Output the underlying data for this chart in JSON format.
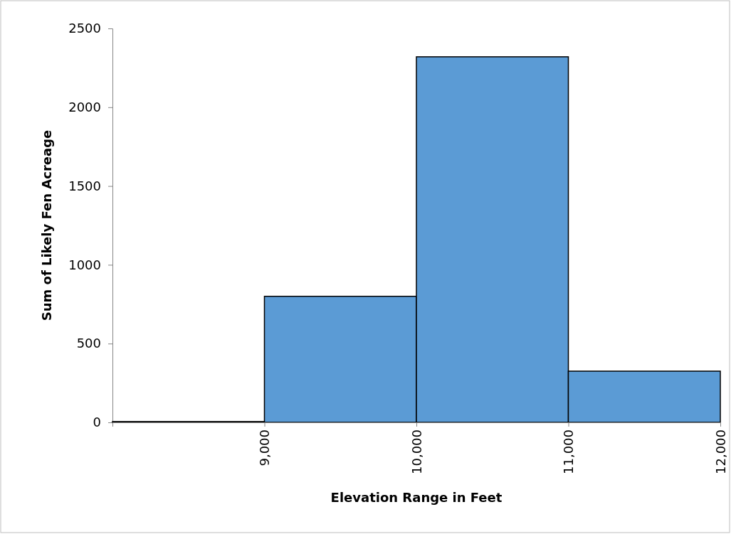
{
  "chart_data": {
    "type": "histogram",
    "xlabel": "Elevation Range in Feet",
    "ylabel": "Sum of Likely Fen Acreage",
    "bins": [
      8000,
      9000,
      10000,
      11000,
      12000
    ],
    "values": [
      5,
      800,
      2320,
      325
    ],
    "color": "#5b9bd5",
    "xlim": [
      8000,
      12000
    ],
    "xticks": [
      {
        "value": 8000,
        "label": null
      },
      {
        "value": 9000,
        "label": "9,000"
      },
      {
        "value": 10000,
        "label": "10,000"
      },
      {
        "value": 11000,
        "label": "11,000"
      },
      {
        "value": 12000,
        "label": "12,000"
      }
    ],
    "ylim": [
      0,
      2500
    ],
    "yticks": [
      0,
      500,
      1000,
      1500,
      2000,
      2500
    ],
    "grid": false
  }
}
